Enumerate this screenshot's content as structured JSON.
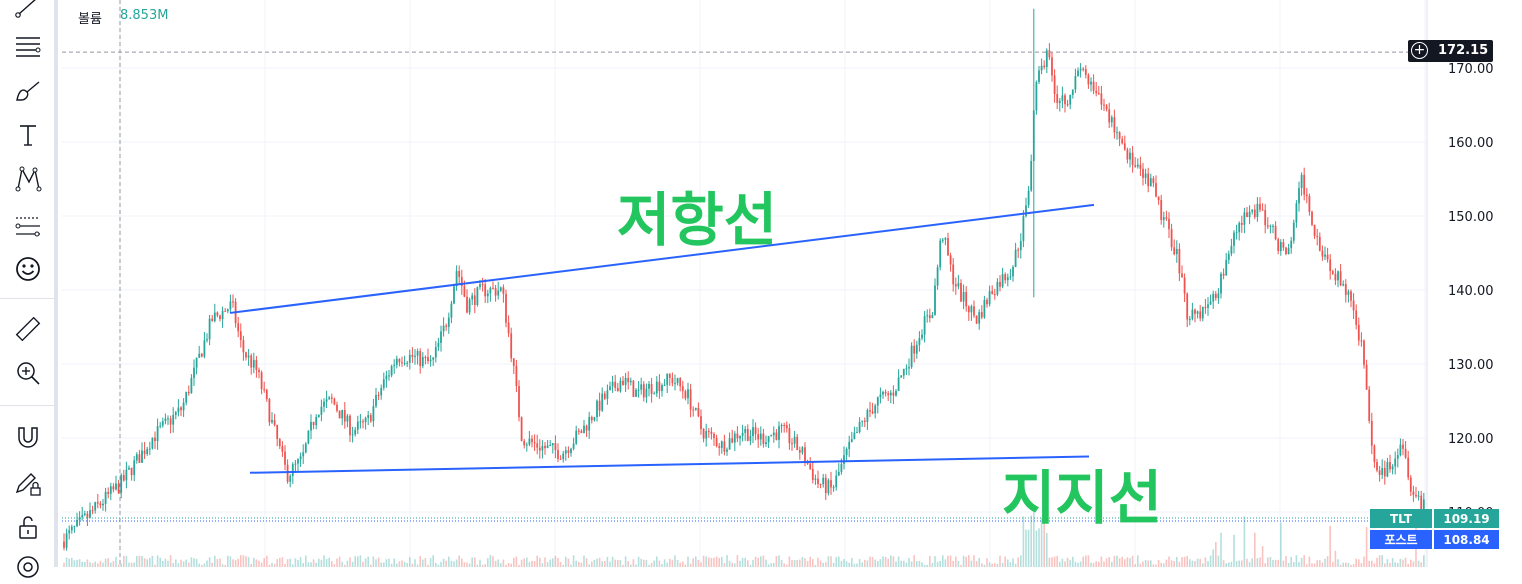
{
  "volume_label": {
    "title": "볼륨",
    "value": "8.853M"
  },
  "annotations": {
    "resistance": "저항선",
    "support": "지지선"
  },
  "crosshair_price": "172.15",
  "price_tags": [
    {
      "label": "TLT",
      "value": "109.19",
      "color": "#26a69a"
    },
    {
      "label": "포스트",
      "value": "108.84",
      "color": "#2962ff"
    }
  ],
  "toolbar": [
    "cursor-line-tool",
    "horizontal-lines-tool",
    "brush-tool",
    "text-tool",
    "pattern-tool",
    "forecast-tool",
    "emoji-tool",
    "ruler-tool",
    "zoom-in-tool",
    "magnet-tool",
    "lock-drawing-tool",
    "unlock-tool",
    "visibility-tool"
  ],
  "chart_data": {
    "type": "candlestick",
    "y_axis_ticks": [
      "170.00",
      "160.00",
      "150.00",
      "140.00",
      "130.00",
      "120.00",
      "110.00"
    ],
    "ylim": [
      107,
      177
    ],
    "up_color": "#26a69a",
    "down_color": "#ef5350",
    "line_color": "#2962ff",
    "annotation_color": "#22c55e",
    "price_path": [
      [
        0,
        106
      ],
      [
        30,
        110
      ],
      [
        60,
        114
      ],
      [
        90,
        120
      ],
      [
        120,
        124
      ],
      [
        150,
        136
      ],
      [
        170,
        138
      ],
      [
        180,
        132
      ],
      [
        195,
        129
      ],
      [
        210,
        122
      ],
      [
        225,
        115
      ],
      [
        240,
        117
      ],
      [
        255,
        124
      ],
      [
        270,
        125
      ],
      [
        290,
        121
      ],
      [
        305,
        122
      ],
      [
        320,
        127
      ],
      [
        335,
        131
      ],
      [
        350,
        131
      ],
      [
        370,
        130
      ],
      [
        385,
        136
      ],
      [
        395,
        143
      ],
      [
        405,
        138
      ],
      [
        420,
        140
      ],
      [
        440,
        140
      ],
      [
        450,
        131
      ],
      [
        460,
        120
      ],
      [
        475,
        119
      ],
      [
        500,
        118
      ],
      [
        520,
        121
      ],
      [
        540,
        125
      ],
      [
        560,
        128
      ],
      [
        575,
        126
      ],
      [
        590,
        127
      ],
      [
        610,
        128
      ],
      [
        625,
        126
      ],
      [
        640,
        121
      ],
      [
        660,
        119
      ],
      [
        680,
        121
      ],
      [
        700,
        120
      ],
      [
        720,
        121
      ],
      [
        740,
        118
      ],
      [
        755,
        114
      ],
      [
        770,
        113
      ],
      [
        785,
        118
      ],
      [
        800,
        122
      ],
      [
        815,
        125
      ],
      [
        830,
        126
      ],
      [
        845,
        130
      ],
      [
        860,
        135
      ],
      [
        870,
        137
      ],
      [
        880,
        148
      ],
      [
        890,
        142
      ],
      [
        900,
        139
      ],
      [
        915,
        136
      ],
      [
        930,
        140
      ],
      [
        950,
        143
      ],
      [
        960,
        148
      ],
      [
        968,
        155
      ],
      [
        973,
        168
      ],
      [
        985,
        172
      ],
      [
        995,
        166
      ],
      [
        1005,
        166
      ],
      [
        1020,
        170
      ],
      [
        1030,
        167
      ],
      [
        1045,
        164
      ],
      [
        1060,
        160
      ],
      [
        1075,
        156
      ],
      [
        1090,
        154
      ],
      [
        1100,
        150
      ],
      [
        1115,
        145
      ],
      [
        1125,
        137
      ],
      [
        1140,
        137
      ],
      [
        1155,
        140
      ],
      [
        1175,
        149
      ],
      [
        1195,
        151
      ],
      [
        1210,
        148
      ],
      [
        1225,
        144
      ],
      [
        1240,
        155
      ],
      [
        1255,
        147
      ],
      [
        1270,
        143
      ],
      [
        1283,
        140
      ],
      [
        1290,
        138
      ],
      [
        1300,
        132
      ],
      [
        1310,
        118
      ],
      [
        1320,
        115
      ],
      [
        1330,
        117
      ],
      [
        1340,
        120
      ],
      [
        1350,
        113
      ],
      [
        1362,
        111
      ]
    ],
    "resistance_line": {
      "from": [
        168,
        136.9
      ],
      "to": [
        1032,
        151.5
      ]
    },
    "support_line": {
      "from": [
        188,
        115.3
      ],
      "to": [
        1027,
        117.5
      ]
    },
    "crosshair_line_price": 172.15
  }
}
